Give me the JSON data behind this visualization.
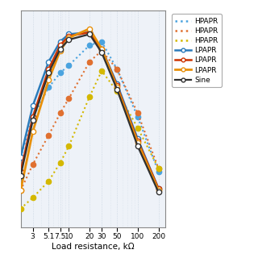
{
  "xlabel": "Load resistance, kΩ",
  "legend_labels": [
    "HPAPR",
    "HPAPR",
    "HPAPR",
    "LPAPR",
    "LPAPR",
    "LPAPR",
    "Sine"
  ],
  "background_color": "#ffffff",
  "axes_bg_color": "#eef2f8",
  "grid_color": "#c8d4e0",
  "x_positions": [
    2,
    3,
    5.1,
    7.5,
    10,
    20,
    30,
    50,
    100,
    200
  ],
  "x_tick_vals": [
    3,
    5.1,
    7.5,
    10,
    20,
    30,
    50,
    100,
    200
  ],
  "x_tick_labels": [
    "3",
    "5.1",
    "7.5",
    "10",
    "20",
    "30",
    "50",
    "100",
    "200"
  ],
  "HPAPR_blue": {
    "x": [
      2,
      3,
      5.1,
      7.5,
      10,
      20,
      30,
      50,
      100,
      200
    ],
    "y": [
      0.3,
      0.52,
      0.68,
      0.76,
      0.8,
      0.91,
      0.93,
      0.78,
      0.52,
      0.22
    ],
    "color": "#4aa3df",
    "linestyle": "dotted",
    "linewidth": 1.5,
    "marker": "o",
    "markersize": 4.5
  },
  "HPAPR_orange": {
    "x": [
      2,
      3,
      5.1,
      7.5,
      10,
      20,
      30,
      50,
      100,
      200
    ],
    "y": [
      0.12,
      0.26,
      0.42,
      0.54,
      0.62,
      0.82,
      0.88,
      0.78,
      0.54,
      0.24
    ],
    "color": "#e07030",
    "linestyle": "dotted",
    "linewidth": 1.5,
    "marker": "o",
    "markersize": 4.5
  },
  "HPAPR_yellow": {
    "x": [
      2,
      3,
      5.1,
      7.5,
      10,
      20,
      30,
      50,
      100,
      200
    ],
    "y": [
      0.02,
      0.08,
      0.17,
      0.27,
      0.36,
      0.63,
      0.77,
      0.66,
      0.46,
      0.24
    ],
    "color": "#d4b800",
    "linestyle": "dotted",
    "linewidth": 1.5,
    "marker": "o",
    "markersize": 4.5
  },
  "LPAPR_blue": {
    "x": [
      2,
      3,
      5.1,
      7.5,
      10,
      20,
      30,
      50,
      100,
      200
    ],
    "y": [
      0.3,
      0.58,
      0.82,
      0.93,
      0.97,
      0.98,
      0.89,
      0.7,
      0.4,
      0.13
    ],
    "color": "#2b7bba",
    "linestyle": "solid",
    "linewidth": 1.8,
    "marker": "o",
    "markersize": 4.5
  },
  "LPAPR_orange": {
    "x": [
      2,
      3,
      5.1,
      7.5,
      10,
      20,
      30,
      50,
      100,
      200
    ],
    "y": [
      0.22,
      0.52,
      0.78,
      0.91,
      0.96,
      0.98,
      0.89,
      0.69,
      0.39,
      0.13
    ],
    "color": "#cc3300",
    "linestyle": "solid",
    "linewidth": 1.8,
    "marker": "o",
    "markersize": 4.5
  },
  "LPAPR_yellow": {
    "x": [
      2,
      3,
      5.1,
      7.5,
      10,
      20,
      30,
      50,
      100,
      200
    ],
    "y": [
      0.12,
      0.44,
      0.72,
      0.88,
      0.95,
      1.0,
      0.89,
      0.68,
      0.38,
      0.12
    ],
    "color": "#e8900a",
    "linestyle": "solid",
    "linewidth": 2.0,
    "marker": "o",
    "markersize": 4.5
  },
  "Sine": {
    "x": [
      2,
      3,
      5.1,
      7.5,
      10,
      20,
      30,
      50,
      100,
      200
    ],
    "y": [
      0.2,
      0.5,
      0.76,
      0.89,
      0.94,
      0.97,
      0.87,
      0.67,
      0.36,
      0.11
    ],
    "color": "#303030",
    "linestyle": "solid",
    "linewidth": 1.6,
    "marker": "o",
    "markersize": 4.5
  }
}
